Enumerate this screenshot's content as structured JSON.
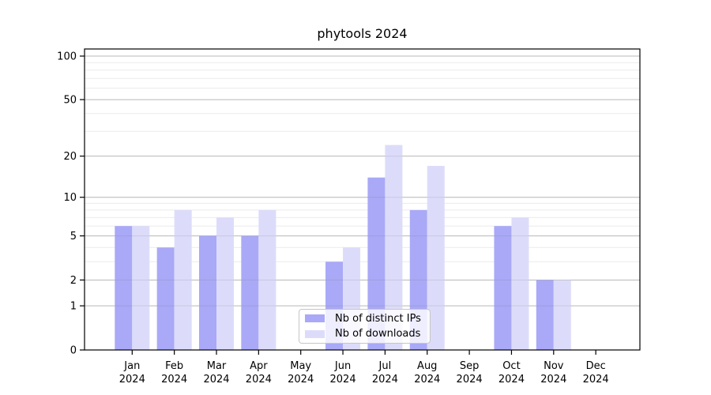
{
  "chart_data": {
    "type": "bar",
    "title": "phytools 2024",
    "categories": [
      "Jan 2024",
      "Feb 2024",
      "Mar 2024",
      "Apr 2024",
      "May 2024",
      "Jun 2024",
      "Jul 2024",
      "Aug 2024",
      "Sep 2024",
      "Oct 2024",
      "Nov 2024",
      "Dec 2024"
    ],
    "series": [
      {
        "name": "Nb of distinct IPs",
        "color": "#a9a9f7",
        "values": [
          6,
          4,
          5,
          5,
          0,
          3,
          14,
          8,
          0,
          6,
          2,
          0
        ]
      },
      {
        "name": "Nb of downloads",
        "color": "#dcdcfa",
        "values": [
          6,
          8,
          7,
          8,
          0,
          4,
          24,
          17,
          0,
          7,
          2,
          0
        ]
      }
    ],
    "xlabel": "",
    "ylabel": "",
    "yscale": "log1p",
    "yticks": [
      0,
      1,
      2,
      5,
      10,
      20,
      50,
      100
    ],
    "minor_gridlines": [
      3,
      4,
      6,
      7,
      8,
      9,
      30,
      40,
      60,
      70,
      80,
      90
    ],
    "ylim": [
      0,
      112
    ],
    "grid": true,
    "legend_position": "lower-center",
    "colors": {
      "major_grid": "#c9c9c9",
      "minor_grid": "#ebebeb",
      "axis": "#000000",
      "background": "#ffffff"
    }
  }
}
